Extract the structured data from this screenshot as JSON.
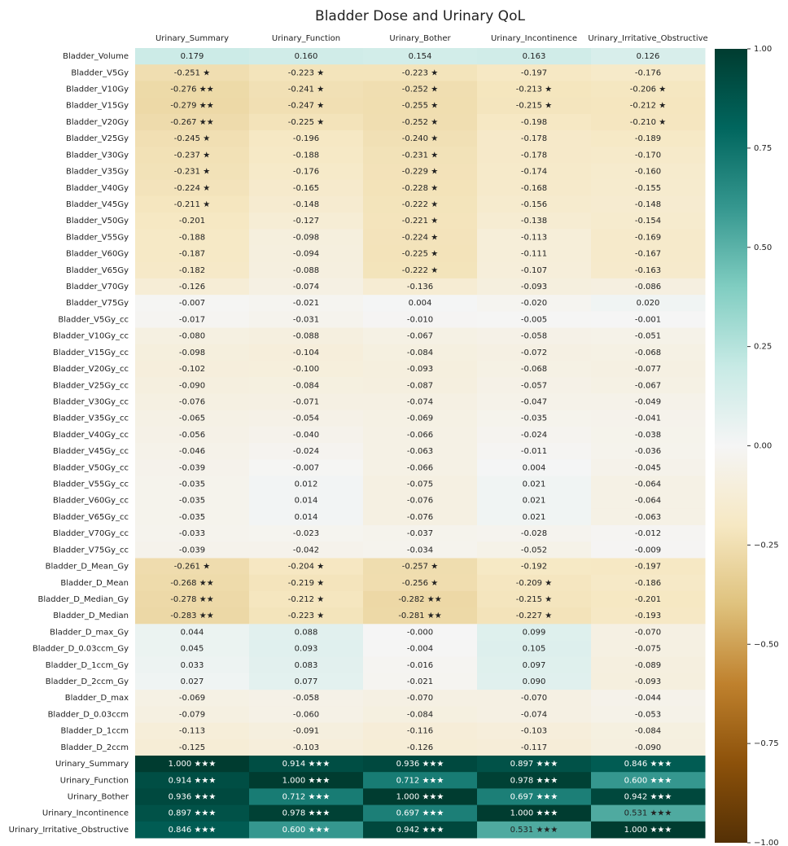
{
  "chart_data": {
    "type": "heatmap",
    "title": "Bladder Dose and Urinary QoL",
    "columns": [
      "Urinary_Summary",
      "Urinary_Function",
      "Urinary_Bother",
      "Urinary_Incontinence",
      "Urinary_Irritative_Obstructive"
    ],
    "rows": [
      "Bladder_Volume",
      "Bladder_V5Gy",
      "Bladder_V10Gy",
      "Bladder_V15Gy",
      "Bladder_V20Gy",
      "Bladder_V25Gy",
      "Bladder_V30Gy",
      "Bladder_V35Gy",
      "Bladder_V40Gy",
      "Bladder_V45Gy",
      "Bladder_V50Gy",
      "Bladder_V55Gy",
      "Bladder_V60Gy",
      "Bladder_V65Gy",
      "Bladder_V70Gy",
      "Bladder_V75Gy",
      "Bladder_V5Gy_cc",
      "Bladder_V10Gy_cc",
      "Bladder_V15Gy_cc",
      "Bladder_V20Gy_cc",
      "Bladder_V25Gy_cc",
      "Bladder_V30Gy_cc",
      "Bladder_V35Gy_cc",
      "Bladder_V40Gy_cc",
      "Bladder_V45Gy_cc",
      "Bladder_V50Gy_cc",
      "Bladder_V55Gy_cc",
      "Bladder_V60Gy_cc",
      "Bladder_V65Gy_cc",
      "Bladder_V70Gy_cc",
      "Bladder_V75Gy_cc",
      "Bladder_D_Mean_Gy",
      "Bladder_D_Mean",
      "Bladder_D_Median_Gy",
      "Bladder_D_Median",
      "Bladder_D_max_Gy",
      "Bladder_D_0.03ccm_Gy",
      "Bladder_D_1ccm_Gy",
      "Bladder_D_2ccm_Gy",
      "Bladder_D_max",
      "Bladder_D_0.03ccm",
      "Bladder_D_1ccm",
      "Bladder_D_2ccm",
      "Urinary_Summary",
      "Urinary_Function",
      "Urinary_Bother",
      "Urinary_Incontinence",
      "Urinary_Irritative_Obstructive"
    ],
    "values": [
      [
        0.179,
        0.16,
        0.154,
        0.163,
        0.126
      ],
      [
        -0.251,
        -0.223,
        -0.223,
        -0.197,
        -0.176
      ],
      [
        -0.276,
        -0.241,
        -0.252,
        -0.213,
        -0.206
      ],
      [
        -0.279,
        -0.247,
        -0.255,
        -0.215,
        -0.212
      ],
      [
        -0.267,
        -0.225,
        -0.252,
        -0.198,
        -0.21
      ],
      [
        -0.245,
        -0.196,
        -0.24,
        -0.178,
        -0.189
      ],
      [
        -0.237,
        -0.188,
        -0.231,
        -0.178,
        -0.17
      ],
      [
        -0.231,
        -0.176,
        -0.229,
        -0.174,
        -0.16
      ],
      [
        -0.224,
        -0.165,
        -0.228,
        -0.168,
        -0.155
      ],
      [
        -0.211,
        -0.148,
        -0.222,
        -0.156,
        -0.148
      ],
      [
        -0.201,
        -0.127,
        -0.221,
        -0.138,
        -0.154
      ],
      [
        -0.188,
        -0.098,
        -0.224,
        -0.113,
        -0.169
      ],
      [
        -0.187,
        -0.094,
        -0.225,
        -0.111,
        -0.167
      ],
      [
        -0.182,
        -0.088,
        -0.222,
        -0.107,
        -0.163
      ],
      [
        -0.126,
        -0.074,
        -0.136,
        -0.093,
        -0.086
      ],
      [
        -0.007,
        -0.021,
        0.004,
        -0.02,
        0.02
      ],
      [
        -0.017,
        -0.031,
        -0.01,
        -0.005,
        -0.001
      ],
      [
        -0.08,
        -0.088,
        -0.067,
        -0.058,
        -0.051
      ],
      [
        -0.098,
        -0.104,
        -0.084,
        -0.072,
        -0.068
      ],
      [
        -0.102,
        -0.1,
        -0.093,
        -0.068,
        -0.077
      ],
      [
        -0.09,
        -0.084,
        -0.087,
        -0.057,
        -0.067
      ],
      [
        -0.076,
        -0.071,
        -0.074,
        -0.047,
        -0.049
      ],
      [
        -0.065,
        -0.054,
        -0.069,
        -0.035,
        -0.041
      ],
      [
        -0.056,
        -0.04,
        -0.066,
        -0.024,
        -0.038
      ],
      [
        -0.046,
        -0.024,
        -0.063,
        -0.011,
        -0.036
      ],
      [
        -0.039,
        -0.007,
        -0.066,
        0.004,
        -0.045
      ],
      [
        -0.035,
        0.012,
        -0.075,
        0.021,
        -0.064
      ],
      [
        -0.035,
        0.014,
        -0.076,
        0.021,
        -0.064
      ],
      [
        -0.035,
        0.014,
        -0.076,
        0.021,
        -0.063
      ],
      [
        -0.033,
        -0.023,
        -0.037,
        -0.028,
        -0.012
      ],
      [
        -0.039,
        -0.042,
        -0.034,
        -0.052,
        -0.009
      ],
      [
        -0.261,
        -0.204,
        -0.257,
        -0.192,
        -0.197
      ],
      [
        -0.268,
        -0.219,
        -0.256,
        -0.209,
        -0.186
      ],
      [
        -0.278,
        -0.212,
        -0.282,
        -0.215,
        -0.201
      ],
      [
        -0.283,
        -0.223,
        -0.281,
        -0.227,
        -0.193
      ],
      [
        0.044,
        0.088,
        0,
        0.099,
        -0.07
      ],
      [
        0.045,
        0.093,
        -0.004,
        0.105,
        -0.075
      ],
      [
        0.033,
        0.083,
        -0.016,
        0.097,
        -0.089
      ],
      [
        0.027,
        0.077,
        -0.021,
        0.09,
        -0.093
      ],
      [
        -0.069,
        -0.058,
        -0.07,
        -0.07,
        -0.044
      ],
      [
        -0.079,
        -0.06,
        -0.084,
        -0.074,
        -0.053
      ],
      [
        -0.113,
        -0.091,
        -0.116,
        -0.103,
        -0.084
      ],
      [
        -0.125,
        -0.103,
        -0.126,
        -0.117,
        -0.09
      ],
      [
        1.0,
        0.914,
        0.936,
        0.897,
        0.846
      ],
      [
        0.914,
        1.0,
        0.712,
        0.978,
        0.6
      ],
      [
        0.936,
        0.712,
        1.0,
        0.697,
        0.942
      ],
      [
        0.897,
        0.978,
        0.697,
        1.0,
        0.531
      ],
      [
        0.846,
        0.6,
        0.942,
        0.531,
        1.0
      ]
    ],
    "value_labels": [
      [
        "0.179",
        "0.160",
        "0.154",
        "0.163",
        "0.126"
      ],
      [
        "-0.251 ★",
        "-0.223 ★",
        "-0.223 ★",
        "-0.197",
        "-0.176"
      ],
      [
        "-0.276 ★★",
        "-0.241 ★",
        "-0.252 ★",
        "-0.213 ★",
        "-0.206 ★"
      ],
      [
        "-0.279 ★★",
        "-0.247 ★",
        "-0.255 ★",
        "-0.215 ★",
        "-0.212 ★"
      ],
      [
        "-0.267 ★★",
        "-0.225 ★",
        "-0.252 ★",
        "-0.198",
        "-0.210 ★"
      ],
      [
        "-0.245 ★",
        "-0.196",
        "-0.240 ★",
        "-0.178",
        "-0.189"
      ],
      [
        "-0.237 ★",
        "-0.188",
        "-0.231 ★",
        "-0.178",
        "-0.170"
      ],
      [
        "-0.231 ★",
        "-0.176",
        "-0.229 ★",
        "-0.174",
        "-0.160"
      ],
      [
        "-0.224 ★",
        "-0.165",
        "-0.228 ★",
        "-0.168",
        "-0.155"
      ],
      [
        "-0.211 ★",
        "-0.148",
        "-0.222 ★",
        "-0.156",
        "-0.148"
      ],
      [
        "-0.201",
        "-0.127",
        "-0.221 ★",
        "-0.138",
        "-0.154"
      ],
      [
        "-0.188",
        "-0.098",
        "-0.224 ★",
        "-0.113",
        "-0.169"
      ],
      [
        "-0.187",
        "-0.094",
        "-0.225 ★",
        "-0.111",
        "-0.167"
      ],
      [
        "-0.182",
        "-0.088",
        "-0.222 ★",
        "-0.107",
        "-0.163"
      ],
      [
        "-0.126",
        "-0.074",
        "-0.136",
        "-0.093",
        "-0.086"
      ],
      [
        "-0.007",
        "-0.021",
        "0.004",
        "-0.020",
        "0.020"
      ],
      [
        "-0.017",
        "-0.031",
        "-0.010",
        "-0.005",
        "-0.001"
      ],
      [
        "-0.080",
        "-0.088",
        "-0.067",
        "-0.058",
        "-0.051"
      ],
      [
        "-0.098",
        "-0.104",
        "-0.084",
        "-0.072",
        "-0.068"
      ],
      [
        "-0.102",
        "-0.100",
        "-0.093",
        "-0.068",
        "-0.077"
      ],
      [
        "-0.090",
        "-0.084",
        "-0.087",
        "-0.057",
        "-0.067"
      ],
      [
        "-0.076",
        "-0.071",
        "-0.074",
        "-0.047",
        "-0.049"
      ],
      [
        "-0.065",
        "-0.054",
        "-0.069",
        "-0.035",
        "-0.041"
      ],
      [
        "-0.056",
        "-0.040",
        "-0.066",
        "-0.024",
        "-0.038"
      ],
      [
        "-0.046",
        "-0.024",
        "-0.063",
        "-0.011",
        "-0.036"
      ],
      [
        "-0.039",
        "-0.007",
        "-0.066",
        "0.004",
        "-0.045"
      ],
      [
        "-0.035",
        "0.012",
        "-0.075",
        "0.021",
        "-0.064"
      ],
      [
        "-0.035",
        "0.014",
        "-0.076",
        "0.021",
        "-0.064"
      ],
      [
        "-0.035",
        "0.014",
        "-0.076",
        "0.021",
        "-0.063"
      ],
      [
        "-0.033",
        "-0.023",
        "-0.037",
        "-0.028",
        "-0.012"
      ],
      [
        "-0.039",
        "-0.042",
        "-0.034",
        "-0.052",
        "-0.009"
      ],
      [
        "-0.261 ★",
        "-0.204 ★",
        "-0.257 ★",
        "-0.192",
        "-0.197"
      ],
      [
        "-0.268 ★★",
        "-0.219 ★",
        "-0.256 ★",
        "-0.209 ★",
        "-0.186"
      ],
      [
        "-0.278 ★★",
        "-0.212 ★",
        "-0.282 ★★",
        "-0.215 ★",
        "-0.201"
      ],
      [
        "-0.283 ★★",
        "-0.223 ★",
        "-0.281 ★★",
        "-0.227 ★",
        "-0.193"
      ],
      [
        "0.044",
        "0.088",
        "-0.000",
        "0.099",
        "-0.070"
      ],
      [
        "0.045",
        "0.093",
        "-0.004",
        "0.105",
        "-0.075"
      ],
      [
        "0.033",
        "0.083",
        "-0.016",
        "0.097",
        "-0.089"
      ],
      [
        "0.027",
        "0.077",
        "-0.021",
        "0.090",
        "-0.093"
      ],
      [
        "-0.069",
        "-0.058",
        "-0.070",
        "-0.070",
        "-0.044"
      ],
      [
        "-0.079",
        "-0.060",
        "-0.084",
        "-0.074",
        "-0.053"
      ],
      [
        "-0.113",
        "-0.091",
        "-0.116",
        "-0.103",
        "-0.084"
      ],
      [
        "-0.125",
        "-0.103",
        "-0.126",
        "-0.117",
        "-0.090"
      ],
      [
        "1.000 ★★★",
        "0.914 ★★★",
        "0.936 ★★★",
        "0.897 ★★★",
        "0.846 ★★★"
      ],
      [
        "0.914 ★★★",
        "1.000 ★★★",
        "0.712 ★★★",
        "0.978 ★★★",
        "0.600 ★★★"
      ],
      [
        "0.936 ★★★",
        "0.712 ★★★",
        "1.000 ★★★",
        "0.697 ★★★",
        "0.942 ★★★"
      ],
      [
        "0.897 ★★★",
        "0.978 ★★★",
        "0.697 ★★★",
        "1.000 ★★★",
        "0.531 ★★★"
      ],
      [
        "0.846 ★★★",
        "0.600 ★★★",
        "0.942 ★★★",
        "0.531 ★★★",
        "1.000 ★★★"
      ]
    ],
    "colors": [
      "#543005",
      "#8c510a",
      "#bf812d",
      "#dfc27d",
      "#f6e8c3",
      "#f5f5f5",
      "#c7eae5",
      "#80cdc1",
      "#35978f",
      "#01665e",
      "#003c30"
    ],
    "zlim": [
      -1,
      1
    ],
    "zticks": [
      {
        "value": 1,
        "label": "1.00"
      },
      {
        "value": 0.75,
        "label": "0.75"
      },
      {
        "value": 0.5,
        "label": "0.50"
      },
      {
        "value": 0.25,
        "label": "0.25"
      },
      {
        "value": 0,
        "label": "0.00"
      },
      {
        "value": -0.25,
        "label": "−0.25"
      },
      {
        "value": -0.5,
        "label": "−0.50"
      },
      {
        "value": -0.75,
        "label": "−0.75"
      },
      {
        "value": -1,
        "label": "−1.00"
      }
    ]
  }
}
